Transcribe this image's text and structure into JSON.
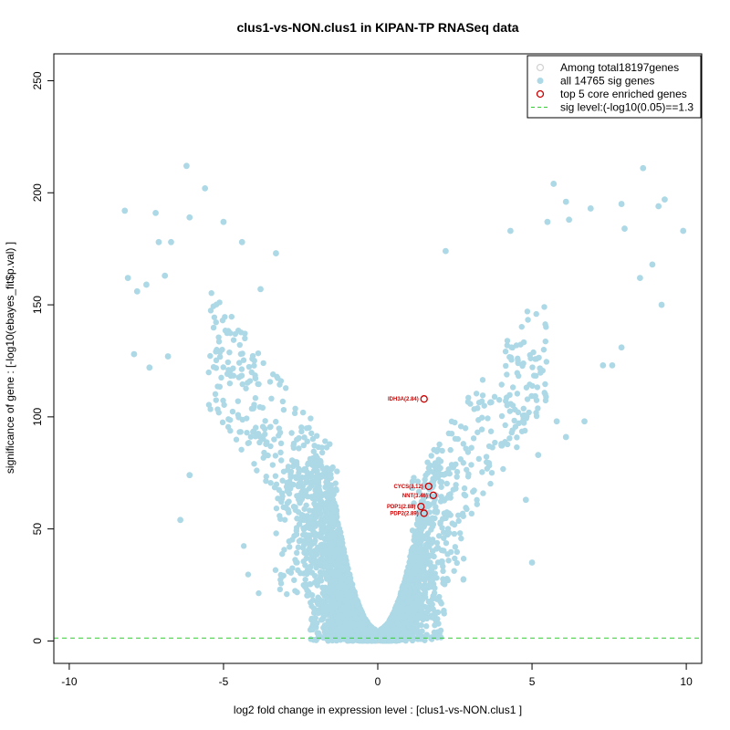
{
  "chart_data": {
    "type": "scatter",
    "title": "clus1-vs-NON.clus1 in KIPAN-TP RNASeq data",
    "xlabel": "log2 fold change in expression level : [clus1-vs-NON.clus1 ]",
    "ylabel": "significance of gene : [-log10(ebayes_fit$p.val) ]",
    "xlim": [
      -10.5,
      10.5
    ],
    "ylim": [
      -10,
      262
    ],
    "xticks": [
      -10,
      -5,
      0,
      5,
      10
    ],
    "yticks": [
      0,
      50,
      100,
      150,
      200,
      250
    ],
    "sig_level": 1.3,
    "legend": [
      {
        "label": "Among total18197genes",
        "kind": "open-circle",
        "color": "#d3d3d3"
      },
      {
        "label": "all 14765 sig genes",
        "kind": "filled-circle",
        "color": "#add8e6"
      },
      {
        "label": "top 5 core enriched genes",
        "kind": "open-circle",
        "color": "#cc0000"
      },
      {
        "label": "sig level:(-log10(0.05)==1.3",
        "kind": "dashed-line",
        "color": "#33cc33"
      }
    ],
    "highlighted_genes": [
      {
        "label": "IDH3A(2.84)",
        "x": 1.5,
        "y": 108
      },
      {
        "label": "CYCS(3.12)",
        "x": 1.65,
        "y": 69
      },
      {
        "label": "NNT(3.46)",
        "x": 1.8,
        "y": 65
      },
      {
        "label": "PDP1(2.88)",
        "x": 1.4,
        "y": 60
      },
      {
        "label": "PDP2(2.89)",
        "x": 1.5,
        "y": 57
      }
    ],
    "extreme_points": [
      {
        "x": -8.2,
        "y": 192
      },
      {
        "x": -7.2,
        "y": 191
      },
      {
        "x": -6.2,
        "y": 212
      },
      {
        "x": -5.6,
        "y": 202
      },
      {
        "x": -6.1,
        "y": 189
      },
      {
        "x": -5.0,
        "y": 187
      },
      {
        "x": -6.7,
        "y": 178
      },
      {
        "x": -7.1,
        "y": 178
      },
      {
        "x": -8.1,
        "y": 162
      },
      {
        "x": -7.8,
        "y": 156
      },
      {
        "x": -7.5,
        "y": 159
      },
      {
        "x": -6.9,
        "y": 163
      },
      {
        "x": -7.9,
        "y": 128
      },
      {
        "x": -6.8,
        "y": 127
      },
      {
        "x": -7.4,
        "y": 122
      },
      {
        "x": -6.4,
        "y": 54
      },
      {
        "x": -6.1,
        "y": 74
      },
      {
        "x": -4.4,
        "y": 178
      },
      {
        "x": -3.3,
        "y": 173
      },
      {
        "x": -3.8,
        "y": 157
      },
      {
        "x": 5.7,
        "y": 204
      },
      {
        "x": 8.6,
        "y": 211
      },
      {
        "x": 9.3,
        "y": 197
      },
      {
        "x": 9.9,
        "y": 183
      },
      {
        "x": 9.1,
        "y": 194
      },
      {
        "x": 8.0,
        "y": 184
      },
      {
        "x": 7.9,
        "y": 195
      },
      {
        "x": 6.9,
        "y": 193
      },
      {
        "x": 6.2,
        "y": 188
      },
      {
        "x": 6.1,
        "y": 196
      },
      {
        "x": 4.3,
        "y": 183
      },
      {
        "x": 2.2,
        "y": 174
      },
      {
        "x": 5.5,
        "y": 187
      },
      {
        "x": 8.9,
        "y": 168
      },
      {
        "x": 8.5,
        "y": 162
      },
      {
        "x": 9.2,
        "y": 150
      },
      {
        "x": 7.9,
        "y": 131
      },
      {
        "x": 7.3,
        "y": 123
      },
      {
        "x": 7.6,
        "y": 123
      },
      {
        "x": 6.7,
        "y": 98
      },
      {
        "x": 5.8,
        "y": 98
      },
      {
        "x": 6.1,
        "y": 91
      },
      {
        "x": 5.2,
        "y": 83
      },
      {
        "x": 4.8,
        "y": 63
      },
      {
        "x": 5.0,
        "y": 35
      }
    ]
  }
}
